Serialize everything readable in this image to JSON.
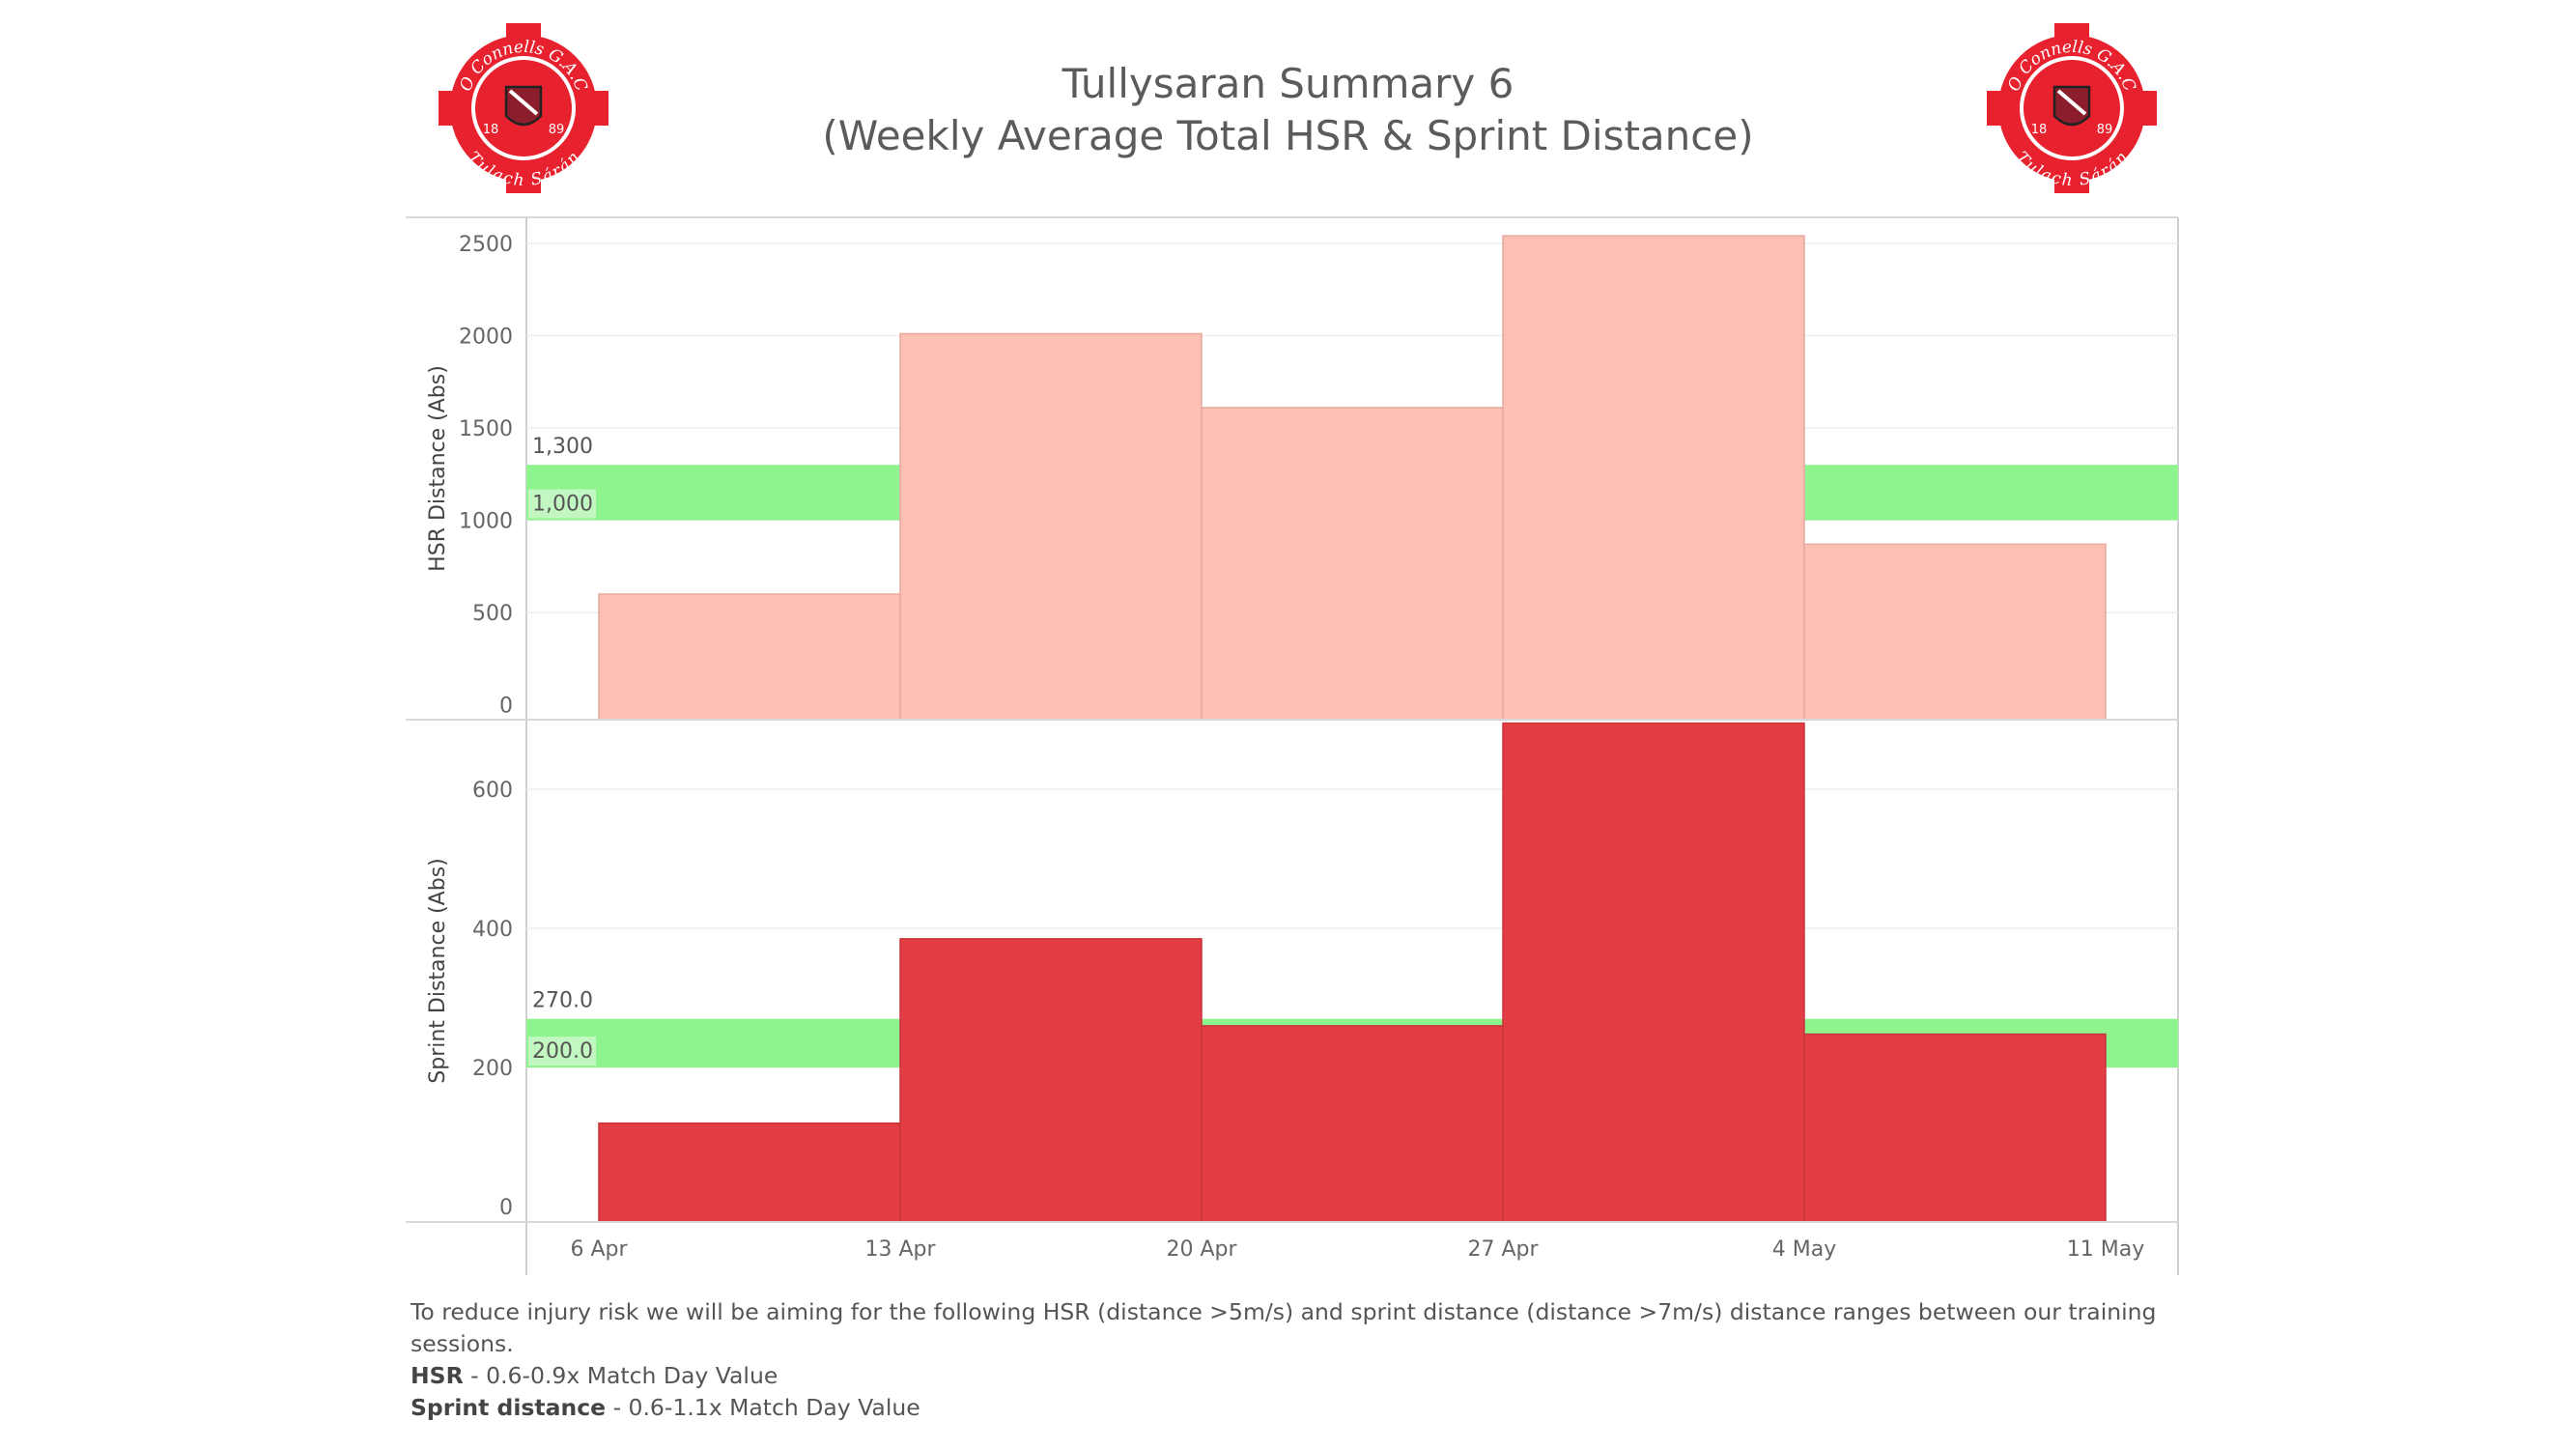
{
  "header": {
    "title_line1": "Tullysaran Summary 6",
    "title_line2": "(Weekly Average Total HSR & Sprint Distance)",
    "logo_left": {
      "text_top": "O Connells",
      "text_right": "G.A.C",
      "text_bottom": "Tulach Sárán",
      "year_left": "18",
      "year_right": "89",
      "color": "#e8212e"
    },
    "logo_right": {
      "text_top": "O Connells",
      "text_right": "G.A.C",
      "text_bottom": "Tulach Sárán",
      "year_left": "18",
      "year_right": "89",
      "color": "#e8212e"
    }
  },
  "chart_data": [
    {
      "type": "bar",
      "ylabel": "HSR Distance (Abs)",
      "x_ticks": [
        "6 Apr",
        "13 Apr",
        "20 Apr",
        "27 Apr",
        "4 May",
        "11 May"
      ],
      "bars": [
        {
          "from": "6 Apr",
          "to": "13 Apr",
          "value": 600
        },
        {
          "from": "13 Apr",
          "to": "20 Apr",
          "value": 2010
        },
        {
          "from": "20 Apr",
          "to": "27 Apr",
          "value": 1610
        },
        {
          "from": "27 Apr",
          "to": "4 May",
          "value": 2540
        },
        {
          "from": "4 May",
          "to": "11 May",
          "value": 870
        }
      ],
      "y_ticks": [
        0,
        500,
        1000,
        1500,
        2000,
        2500
      ],
      "y_tick_labels": [
        "0",
        "500",
        "1000",
        "1500",
        "2000",
        "2500"
      ],
      "ylim": [
        -80,
        2640
      ],
      "target_band": {
        "low": 1000,
        "high": 1300,
        "low_label": "1,000",
        "high_label": "1,300"
      },
      "bar_color": "#fcbfb3",
      "band_color": "#8ef58e"
    },
    {
      "type": "bar",
      "ylabel": "Sprint Distance (Abs)",
      "x_ticks": [
        "6 Apr",
        "13 Apr",
        "20 Apr",
        "27 Apr",
        "4 May",
        "11 May"
      ],
      "bars": [
        {
          "from": "6 Apr",
          "to": "13 Apr",
          "value": 120
        },
        {
          "from": "13 Apr",
          "to": "20 Apr",
          "value": 385
        },
        {
          "from": "20 Apr",
          "to": "27 Apr",
          "value": 260
        },
        {
          "from": "27 Apr",
          "to": "4 May",
          "value": 695
        },
        {
          "from": "4 May",
          "to": "11 May",
          "value": 248
        }
      ],
      "y_ticks": [
        0,
        200,
        400,
        600
      ],
      "y_tick_labels": [
        "0",
        "200",
        "400",
        "600"
      ],
      "ylim": [
        -22,
        700
      ],
      "target_band": {
        "low": 200,
        "high": 270,
        "low_label": "200.0",
        "high_label": "270.0"
      },
      "bar_color": "#e33d44",
      "band_color": "#8ef58e"
    }
  ],
  "footer": {
    "line1": "To reduce injury risk we will be aiming for the following HSR (distance >5m/s) and sprint distance (distance >7m/s) distance ranges between our training sessions.",
    "hsr_term": "HSR",
    "hsr_text": " - 0.6-0.9x Match Day Value",
    "sprint_term": "Sprint distance",
    "sprint_text": " - 0.6-1.1x Match Day Value"
  }
}
